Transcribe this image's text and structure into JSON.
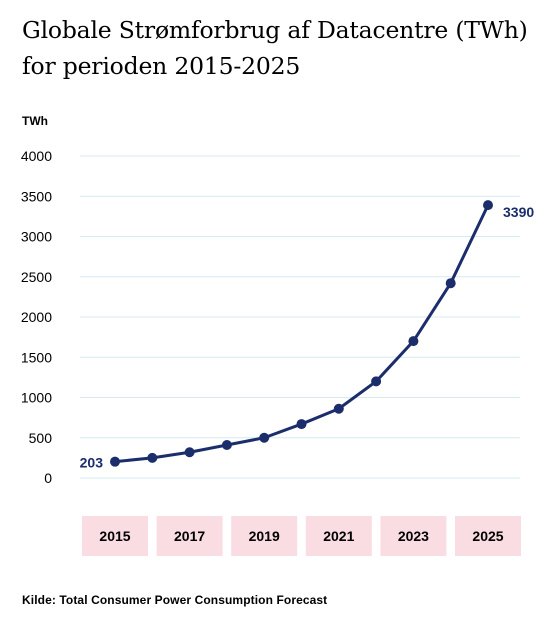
{
  "header": {
    "title_line1": "Globale Strømforbrug af Datacentre (TWh)",
    "title_line2": "for perioden 2015-2025"
  },
  "footer": {
    "source": "Kilde: Total Consumer Power Consumption Forecast"
  },
  "chart_data": {
    "type": "line",
    "title": "Globale Strømforbrug af Datacentre (TWh) for perioden 2015-2025",
    "ylabel": "TWh",
    "xlabel": "",
    "x": [
      2015,
      2016,
      2017,
      2018,
      2019,
      2020,
      2021,
      2022,
      2023,
      2024,
      2025
    ],
    "series": [
      {
        "name": "",
        "values": [
          203,
          250,
          320,
          410,
          500,
          670,
          860,
          1200,
          1700,
          2420,
          3390
        ]
      }
    ],
    "ylim": [
      0,
      4000
    ],
    "yticks": [
      0,
      500,
      1000,
      1500,
      2000,
      2500,
      3000,
      3500,
      4000
    ],
    "xtick_labels": [
      "2015",
      "2017",
      "2019",
      "2021",
      "2023",
      "2025"
    ],
    "data_labels": [
      {
        "x": 2015,
        "text": "203"
      },
      {
        "x": 2025,
        "text": "3390"
      }
    ],
    "grid": true,
    "colors": {
      "line": "#1b2d6b",
      "grid": "#d6eaf3",
      "tick_box": "#f9dde3"
    }
  }
}
